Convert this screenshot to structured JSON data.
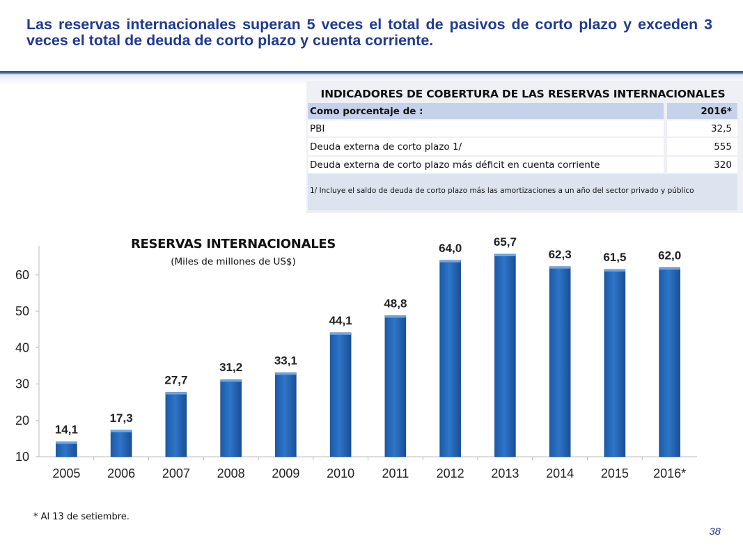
{
  "slide": {
    "headline": "Las reservas internacionales superan 5 veces el total de pasivos de corto plazo y exceden 3 veces el total de deuda de corto plazo y cuenta corriente.",
    "page_number": "38",
    "note": "* Al 13 de setiembre.",
    "colors": {
      "headline": "#1f3a93",
      "bar": "#2e75c8",
      "table_header": "#c6d2ea"
    }
  },
  "table": {
    "title": "INDICADORES DE COBERTURA DE LAS RESERVAS INTERNACIONALES",
    "header": {
      "label": "Como porcentaje de :",
      "year": "2016*"
    },
    "rows": [
      {
        "label": "PBI",
        "value": "32,5"
      },
      {
        "label": "Deuda externa de corto plazo 1/",
        "value": "555"
      },
      {
        "label": "Deuda externa de corto plazo más déficit en cuenta corriente",
        "value": "320"
      }
    ],
    "footnote": "1/ Incluye el saldo de deuda de corto plazo más las amortizaciones a un año del sector privado y público"
  },
  "chart_data": {
    "type": "bar",
    "title": "RESERVAS INTERNACIONALES",
    "subtitle": "(Miles de millones de US$)",
    "categories": [
      "2005",
      "2006",
      "2007",
      "2008",
      "2009",
      "2010",
      "2011",
      "2012",
      "2013",
      "2014",
      "2015",
      "2016*"
    ],
    "values": [
      14.1,
      17.3,
      27.7,
      31.2,
      33.1,
      44.1,
      48.8,
      64.0,
      65.7,
      62.3,
      61.5,
      62.0
    ],
    "value_labels": [
      "14,1",
      "17,3",
      "27,7",
      "31,2",
      "33,1",
      "44,1",
      "48,8",
      "64,0",
      "65,7",
      "62,3",
      "61,5",
      "62,0"
    ],
    "ylim": [
      10,
      68
    ],
    "yticks": [
      10,
      20,
      30,
      40,
      50,
      60
    ],
    "grid": false,
    "legend": "none",
    "xlabel": "",
    "ylabel": ""
  }
}
